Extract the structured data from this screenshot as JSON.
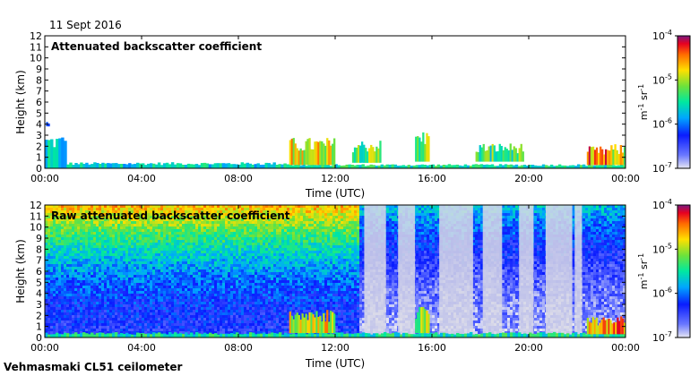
{
  "date_label": "11 Sept 2016",
  "footer_label": "Vehmasmaki CL51 ceilometer",
  "chart_data": [
    {
      "type": "heatmap",
      "title": "Attenuated backscatter coefficient",
      "xlabel": "Time (UTC)",
      "ylabel": "Height (km)",
      "x_ticks": [
        "00:00",
        "04:00",
        "08:00",
        "12:00",
        "16:00",
        "20:00",
        "00:00"
      ],
      "x_range_hours": [
        0,
        24
      ],
      "y_ticks": [
        0,
        1,
        2,
        3,
        4,
        5,
        6,
        7,
        8,
        9,
        10,
        11,
        12
      ],
      "ylim": [
        0,
        12
      ],
      "colorbar": {
        "scale": "log",
        "range": [
          "1e-7",
          "1e-4"
        ],
        "ticks": [
          {
            "base": "10",
            "exp": "-4",
            "value": -4
          },
          {
            "base": "10",
            "exp": "-5",
            "value": -5
          },
          {
            "base": "10",
            "exp": "-6",
            "value": -6
          },
          {
            "base": "10",
            "exp": "-7",
            "value": -7
          }
        ],
        "unit": {
          "a": "m",
          "a_exp": "-1",
          "b": "sr",
          "b_exp": "-1"
        }
      },
      "features": [
        {
          "kind": "boundary_layer",
          "start_h": 0.0,
          "end_h": 0.9,
          "top_km": 2.8,
          "level": 0.42
        },
        {
          "kind": "boundary_layer",
          "start_h": 0.9,
          "end_h": 10.2,
          "top_km": 0.5,
          "level": 0.45
        },
        {
          "kind": "boundary_layer",
          "start_h": 10.2,
          "end_h": 24.0,
          "top_km": 0.35,
          "level": 0.5
        },
        {
          "kind": "cloud",
          "start_h": 0.05,
          "end_h": 0.2,
          "base_km": 3.8,
          "top_km": 4.2,
          "level": 0.3
        },
        {
          "kind": "cloud",
          "start_h": 10.1,
          "end_h": 12.0,
          "base_km": 0.3,
          "top_km": 2.8,
          "level": 0.72
        },
        {
          "kind": "cloud",
          "start_h": 12.7,
          "end_h": 13.9,
          "base_km": 0.5,
          "top_km": 2.6,
          "level": 0.6
        },
        {
          "kind": "cloud",
          "start_h": 15.3,
          "end_h": 15.9,
          "base_km": 0.6,
          "top_km": 3.5,
          "level": 0.62
        },
        {
          "kind": "cloud",
          "start_h": 17.8,
          "end_h": 19.8,
          "base_km": 0.6,
          "top_km": 2.3,
          "level": 0.55
        },
        {
          "kind": "cloud",
          "start_h": 22.4,
          "end_h": 23.3,
          "base_km": 0.3,
          "top_km": 2.0,
          "level": 0.82
        },
        {
          "kind": "cloud",
          "start_h": 23.3,
          "end_h": 24.0,
          "base_km": 0.3,
          "top_km": 2.2,
          "level": 0.7
        }
      ]
    },
    {
      "type": "heatmap",
      "title": "Raw attenuated backscatter coefficient",
      "xlabel": "Time (UTC)",
      "ylabel": "Height (km)",
      "x_ticks": [
        "00:00",
        "04:00",
        "08:00",
        "12:00",
        "16:00",
        "20:00",
        "00:00"
      ],
      "x_range_hours": [
        0,
        24
      ],
      "y_ticks": [
        0,
        1,
        2,
        3,
        4,
        5,
        6,
        7,
        8,
        9,
        10,
        11,
        12
      ],
      "ylim": [
        0,
        12
      ],
      "colorbar": {
        "scale": "log",
        "range": [
          "1e-7",
          "1e-4"
        ],
        "ticks": [
          {
            "base": "10",
            "exp": "-4",
            "value": -4
          },
          {
            "base": "10",
            "exp": "-5",
            "value": -5
          },
          {
            "base": "10",
            "exp": "-6",
            "value": -6
          },
          {
            "base": "10",
            "exp": "-7",
            "value": -7
          }
        ],
        "unit": {
          "a": "m",
          "a_exp": "-1",
          "b": "sr",
          "b_exp": "-1"
        }
      },
      "features": [
        {
          "kind": "noise_field",
          "start_h": 0.0,
          "end_h": 13.0,
          "level_low": 0.22,
          "level_high": 0.78
        },
        {
          "kind": "noise_field",
          "start_h": 13.0,
          "end_h": 24.0,
          "level_low": 0.08,
          "level_high": 0.42
        },
        {
          "kind": "gray_band",
          "start_h": 13.2,
          "end_h": 14.1
        },
        {
          "kind": "gray_band",
          "start_h": 14.6,
          "end_h": 15.3
        },
        {
          "kind": "gray_band",
          "start_h": 16.3,
          "end_h": 17.7
        },
        {
          "kind": "gray_band",
          "start_h": 18.1,
          "end_h": 18.9
        },
        {
          "kind": "gray_band",
          "start_h": 19.6,
          "end_h": 20.2
        },
        {
          "kind": "gray_band",
          "start_h": 20.7,
          "end_h": 21.8
        },
        {
          "kind": "gray_band",
          "start_h": 21.9,
          "end_h": 22.2
        },
        {
          "kind": "boundary_layer",
          "start_h": 0.0,
          "end_h": 24.0,
          "top_km": 0.45,
          "level": 0.5
        },
        {
          "kind": "cloud",
          "start_h": 10.1,
          "end_h": 12.0,
          "base_km": 0.4,
          "top_km": 2.6,
          "level": 0.72
        },
        {
          "kind": "cloud",
          "start_h": 15.3,
          "end_h": 15.9,
          "base_km": 0.4,
          "top_km": 3.2,
          "level": 0.62
        },
        {
          "kind": "cloud",
          "start_h": 22.4,
          "end_h": 24.0,
          "base_km": 0.3,
          "top_km": 2.0,
          "level": 0.8
        }
      ]
    }
  ]
}
